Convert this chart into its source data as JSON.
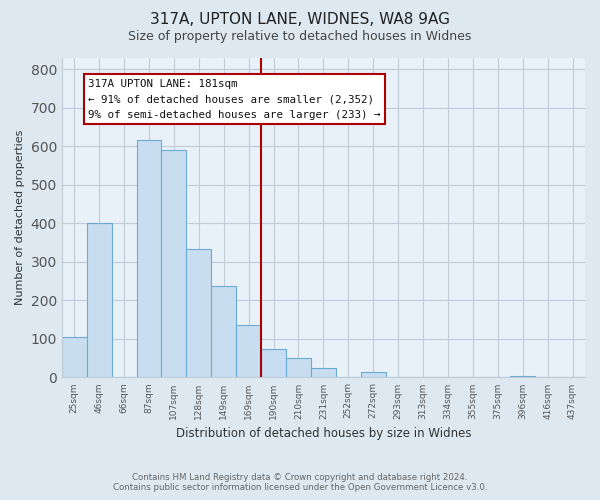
{
  "title": "317A, UPTON LANE, WIDNES, WA8 9AG",
  "subtitle": "Size of property relative to detached houses in Widnes",
  "xlabel": "Distribution of detached houses by size in Widnes",
  "ylabel": "Number of detached properties",
  "footer_line1": "Contains HM Land Registry data © Crown copyright and database right 2024.",
  "footer_line2": "Contains public sector information licensed under the Open Government Licence v3.0.",
  "bin_labels": [
    "25sqm",
    "46sqm",
    "66sqm",
    "87sqm",
    "107sqm",
    "128sqm",
    "149sqm",
    "169sqm",
    "190sqm",
    "210sqm",
    "231sqm",
    "252sqm",
    "272sqm",
    "293sqm",
    "313sqm",
    "334sqm",
    "355sqm",
    "375sqm",
    "396sqm",
    "416sqm",
    "437sqm"
  ],
  "bar_heights": [
    105,
    400,
    0,
    615,
    590,
    333,
    236,
    136,
    75,
    50,
    25,
    0,
    15,
    0,
    0,
    0,
    0,
    0,
    5,
    0,
    0
  ],
  "bar_color": "#c8ddf0",
  "bar_edge_color": "#6aaad4",
  "property_line_color": "#aa0000",
  "annotation_text_line1": "317A UPTON LANE: 181sqm",
  "annotation_text_line2": "← 91% of detached houses are smaller (2,352)",
  "annotation_text_line3": "9% of semi-detached houses are larger (233) →",
  "ylim": [
    0,
    830
  ],
  "yticks": [
    0,
    100,
    200,
    300,
    400,
    500,
    600,
    700,
    800
  ],
  "bg_color": "#dde8f0",
  "plot_bg_color": "#e8f0f8",
  "grid_color": "#c0cdd8",
  "title_color": "#222222",
  "subtitle_color": "#444444",
  "footer_color": "#666666"
}
